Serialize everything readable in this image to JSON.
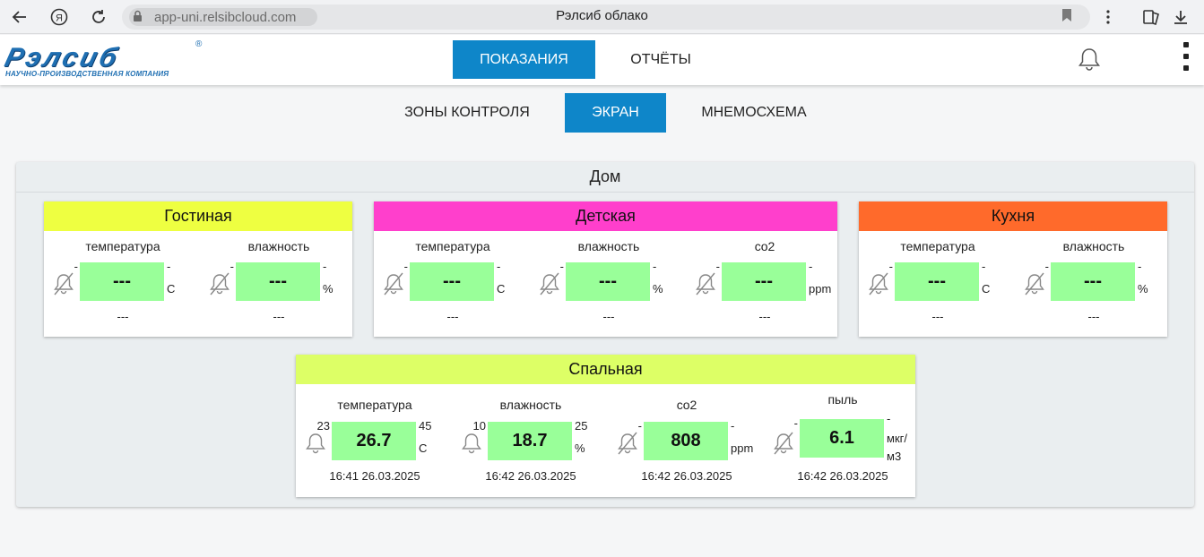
{
  "browser": {
    "url": "app-uni.relsibcloud.com",
    "title": "Рэлсиб облако"
  },
  "logo": {
    "main": "Рэлсиб",
    "sub": "НАУЧНО-ПРОИЗВОДСТВЕННАЯ КОМПАНИЯ",
    "reg": "®"
  },
  "nav": {
    "readings": "ПОКАЗАНИЯ",
    "reports": "ОТЧЁТЫ"
  },
  "subnav": {
    "zones": "ЗОНЫ КОНТРОЛЯ",
    "screen": "ЭКРАН",
    "mnemo": "МНЕМОСХЕМА"
  },
  "group": {
    "title": "Дом",
    "zones": [
      {
        "name": "Гостиная",
        "color": "#eeff41",
        "sensors": [
          {
            "name": "температура",
            "value": "---",
            "lo": "-",
            "hi": "-",
            "unit": "C",
            "time": "---",
            "muted": true
          },
          {
            "name": "влажность",
            "value": "---",
            "lo": "-",
            "hi": "-",
            "unit": "%",
            "time": "---",
            "muted": true
          }
        ]
      },
      {
        "name": "Детская",
        "color": "#ff3fcc",
        "sensors": [
          {
            "name": "температура",
            "value": "---",
            "lo": "-",
            "hi": "-",
            "unit": "C",
            "time": "---",
            "muted": true
          },
          {
            "name": "влажность",
            "value": "---",
            "lo": "-",
            "hi": "-",
            "unit": "%",
            "time": "---",
            "muted": true
          },
          {
            "name": "co2",
            "value": "---",
            "lo": "-",
            "hi": "-",
            "unit": "ppm",
            "time": "---",
            "muted": true
          }
        ]
      },
      {
        "name": "Кухня",
        "color": "#ff6a2b",
        "sensors": [
          {
            "name": "температура",
            "value": "---",
            "lo": "-",
            "hi": "-",
            "unit": "C",
            "time": "---",
            "muted": true
          },
          {
            "name": "влажность",
            "value": "---",
            "lo": "-",
            "hi": "-",
            "unit": "%",
            "time": "---",
            "muted": true
          }
        ]
      },
      {
        "name": "Спальная",
        "color": "#ddff66",
        "sensors": [
          {
            "name": "температура",
            "value": "26.7",
            "lo": "23",
            "hi": "45",
            "unit": "C",
            "time": "16:41 26.03.2025",
            "muted": false
          },
          {
            "name": "влажность",
            "value": "18.7",
            "lo": "10",
            "hi": "25",
            "unit": "%",
            "time": "16:42 26.03.2025",
            "muted": false
          },
          {
            "name": "co2",
            "value": "808",
            "lo": "-",
            "hi": "-",
            "unit": "ppm",
            "time": "16:42 26.03.2025",
            "muted": true
          },
          {
            "name": "пыль",
            "value": "6.1",
            "lo": "-",
            "hi": "-",
            "unit": "мкг/м3",
            "time": "16:42 26.03.2025",
            "muted": true
          }
        ]
      }
    ]
  }
}
